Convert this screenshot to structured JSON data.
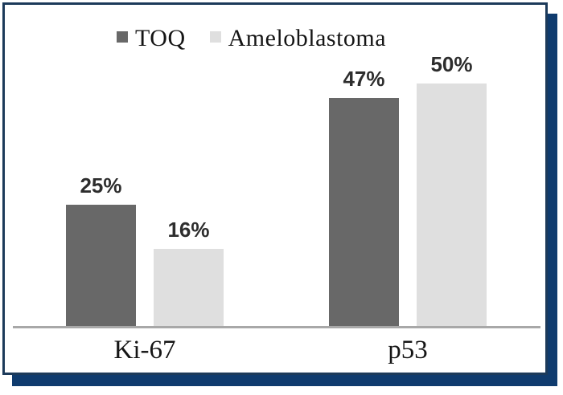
{
  "figure": {
    "background": "#ffffff",
    "frame_border_color": "#1c3a5a",
    "frame_shadow_color": "#0f3b6e"
  },
  "legend": {
    "items": [
      {
        "label": "TOQ",
        "color": "#686868"
      },
      {
        "label": "Ameloblastoma",
        "color": "#dfdfdf"
      }
    ]
  },
  "chart_data": {
    "type": "bar",
    "title": "",
    "categories": [
      "Ki-67",
      "p53"
    ],
    "series": [
      {
        "name": "TOQ",
        "color": "#686868",
        "values": [
          25,
          47
        ],
        "data_labels": [
          "25%",
          "47%"
        ]
      },
      {
        "name": "Ameloblastoma",
        "color": "#dfdfdf",
        "values": [
          16,
          50
        ],
        "data_labels": [
          "16%",
          "50%"
        ]
      }
    ],
    "xlabel": "",
    "ylabel": "",
    "ylim": [
      0,
      66
    ],
    "grid": false,
    "legend_position": "top-center",
    "axis_color": "#a8a8a8",
    "value_suffix": "%"
  }
}
